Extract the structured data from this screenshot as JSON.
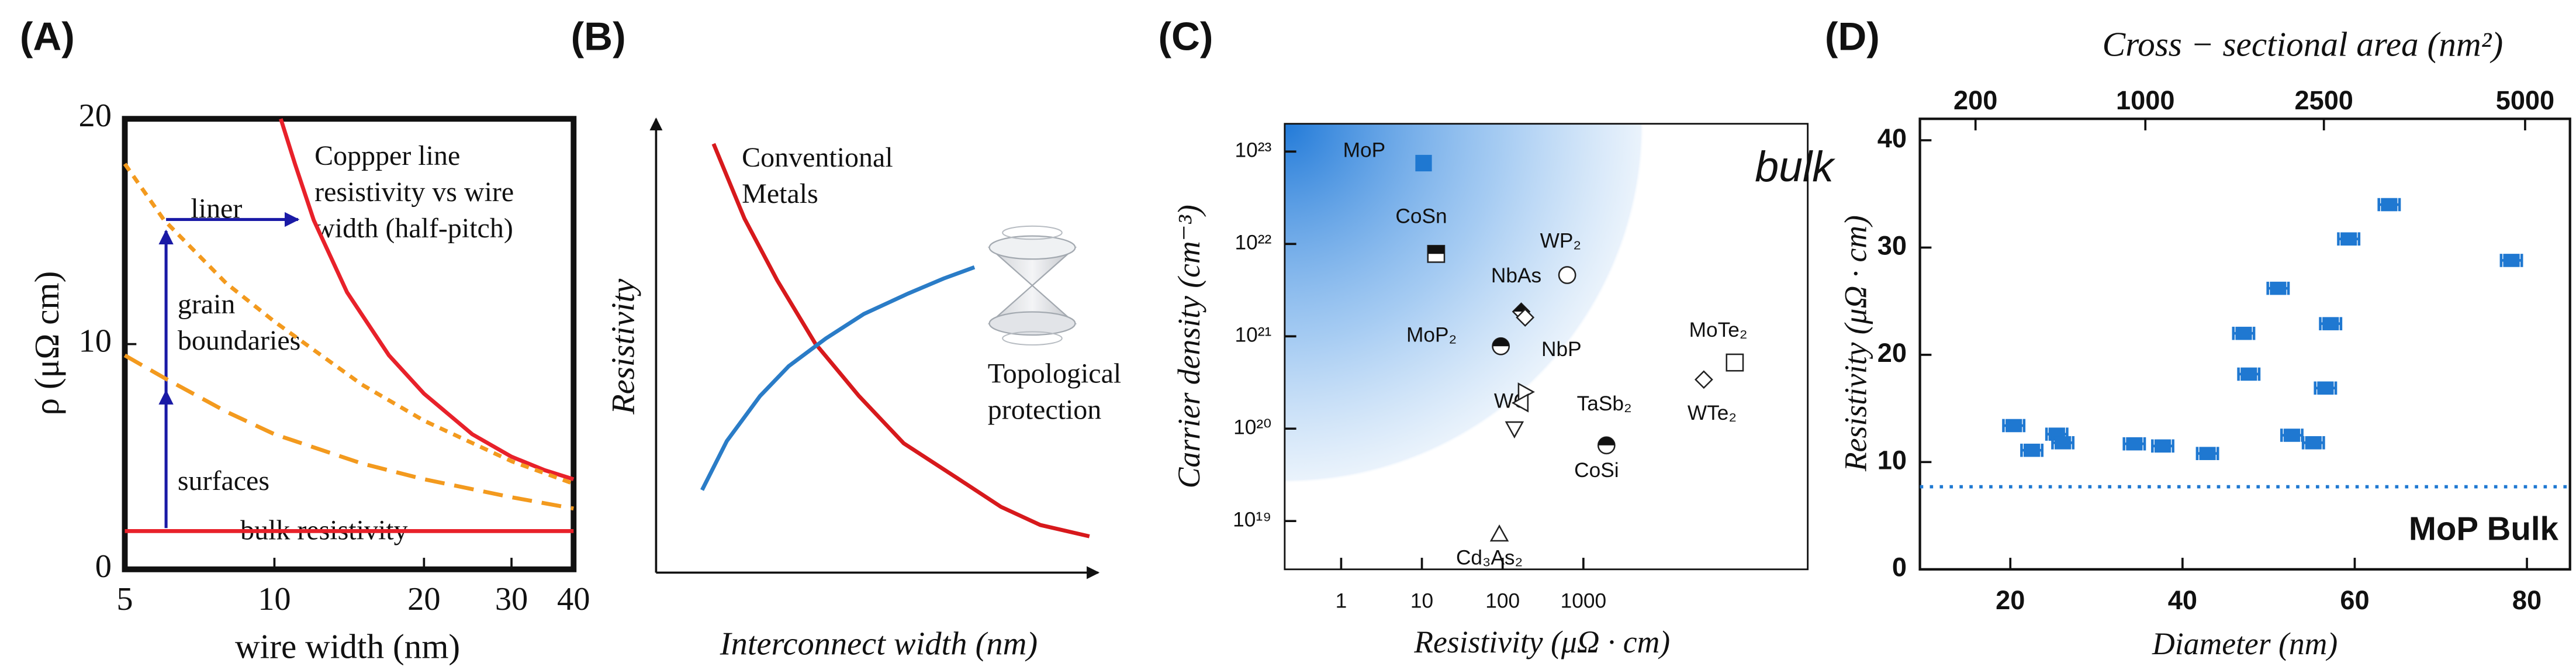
{
  "chart_data": [
    {
      "type": "line",
      "panel": "(A)",
      "xlabel": "wire width (nm)",
      "ylabel": "ρ (μΩ cm)",
      "xscale": "log",
      "xlim": [
        5,
        40
      ],
      "ylim": [
        0,
        20
      ],
      "xticks": [
        5,
        10,
        20,
        30,
        40
      ],
      "yticks": [
        0,
        10,
        20
      ],
      "series": [
        {
          "color": "#e8212a",
          "dash": "solid",
          "x": [
            10.3,
            11,
            12,
            14,
            17,
            20,
            25,
            30,
            35,
            40
          ],
          "values": [
            20,
            18,
            15.5,
            12.3,
            9.5,
            7.8,
            6,
            5,
            4.4,
            4
          ]
        },
        {
          "color": "#f39a1e",
          "dash": "dotted",
          "x": [
            5,
            6,
            8,
            10,
            15,
            20,
            30,
            40
          ],
          "values": [
            18,
            15.5,
            12.7,
            11,
            8.2,
            6.6,
            4.8,
            3.8
          ]
        },
        {
          "color": "#f39a1e",
          "dash": "dashed",
          "x": [
            5,
            6,
            8,
            10,
            15,
            20,
            30,
            40
          ],
          "values": [
            9.5,
            8.5,
            7,
            6,
            4.7,
            4,
            3.2,
            2.7
          ]
        },
        {
          "color": "#e8212a",
          "dash": "solid",
          "x": [
            5,
            40
          ],
          "values": [
            1.7,
            1.7
          ]
        }
      ],
      "annotations": [
        {
          "text": [
            "Coppper line",
            "resistivity vs wire",
            "width (half-pitch)"
          ],
          "color": "#e8212a"
        },
        {
          "text": [
            "liner"
          ],
          "color": "#1a1aa6"
        },
        {
          "text": [
            "grain",
            "boundaries"
          ],
          "color": "#1a1aa6"
        },
        {
          "text": [
            "surfaces"
          ],
          "color": "#1a1aa6"
        },
        {
          "text": [
            "bulk resistivity"
          ],
          "color": "#e8212a"
        }
      ]
    },
    {
      "type": "line",
      "panel": "(B)",
      "xlabel": "Interconnect width (nm)",
      "ylabel": "Resistivity",
      "xlim": [
        0,
        100
      ],
      "ylim": [
        0,
        100
      ],
      "series": [
        {
          "name": [
            "Conventional",
            "Metals"
          ],
          "color": "#d7191c",
          "dash": "solid",
          "x": [
            13,
            20,
            27.4,
            36,
            45.9,
            56,
            68.3,
            78,
            86.9,
            98
          ],
          "values": [
            94.5,
            78,
            64.4,
            50.5,
            38.9,
            28.5,
            20.7,
            14.5,
            10.5,
            8
          ]
        },
        {
          "name": [
            "Topological",
            "protection"
          ],
          "color": "#2a7cc7",
          "dash": "solid",
          "x": [
            10.4,
            16,
            23.5,
            30,
            38.4,
            47,
            57,
            65,
            72
          ],
          "values": [
            18.2,
            29,
            38.9,
            45.5,
            51.6,
            57,
            61.5,
            64.8,
            67.3
          ]
        }
      ]
    },
    {
      "type": "scatter",
      "panel": "(C)",
      "xlabel": "Resistivity (μΩ · cm)",
      "ylabel": "Carrier density (cm⁻³)",
      "xscale": "log",
      "yscale": "log",
      "xlim": [
        0.2,
        600000
      ],
      "ylim": [
        3e+18,
        2e+23
      ],
      "xticks": [
        1,
        10,
        100,
        1000
      ],
      "yticks": [
        {
          "value": 1e+19,
          "label": "10¹⁹"
        },
        {
          "value": 1e+20,
          "label": "10²⁰"
        },
        {
          "value": 1e+21,
          "label": "10²¹"
        },
        {
          "value": 1e+22,
          "label": "10²²"
        },
        {
          "value": 1e+23,
          "label": "10²³"
        }
      ],
      "color": "#1f78d1",
      "labels": [
        "MoP",
        "CoSn",
        "WP₂",
        "NbAs",
        "NbP",
        "MoP₂",
        "WC",
        "TaSb₂",
        null,
        "CoSi",
        "MoTe₂",
        "WTe₂",
        "Cd₃As₂"
      ],
      "x": [
        10.5,
        15,
        630,
        170,
        190,
        95,
        140,
        190,
        170,
        1930,
        75000,
        31000,
        91
      ],
      "values": [
        7.5e+22,
        7.8e+21,
        4.6e+21,
        1.85e+21,
        1.6e+21,
        7.8e+20,
        1e+20,
        2.5e+20,
        1.9e+20,
        6.6e+19,
        5.2e+20,
        3.4e+20,
        7.2e+18
      ],
      "markers": [
        "square-filled",
        "square-half",
        "circle-open",
        "diamond-half",
        "diamond-open",
        "circle-half",
        "triangle-down-open",
        "triangle-right-open",
        "triangle-left-open",
        "circle-half",
        "square-open",
        "diamond-open",
        "triangle-up-open"
      ],
      "annotations": [
        {
          "text": [
            "bulk"
          ]
        }
      ]
    },
    {
      "type": "scatter",
      "panel": "(D)",
      "xlabel": "Diameter (nm)",
      "ylabel": "Resistivity (μΩ · cm)",
      "x2label": "Cross − sectional area (nm²)",
      "x2ticks": [
        200,
        1000,
        2500,
        5000
      ],
      "xlim": [
        9.5,
        85
      ],
      "ylim": [
        0,
        42
      ],
      "xticks": [
        20,
        40,
        60,
        80
      ],
      "yticks": [
        0,
        10,
        20,
        30,
        40
      ],
      "color": "#1f78d1",
      "x": [
        20.4,
        22.5,
        25.4,
        26.1,
        34.4,
        37.7,
        42.9,
        47.1,
        47.7,
        51.1,
        52.7,
        55.2,
        56.6,
        57.2,
        59.3,
        64.0,
        78.2
      ],
      "xerr": [
        1.2,
        1.2,
        1.2,
        1.2,
        1.2,
        1.2,
        1.2,
        1.2,
        1.2,
        1.2,
        1.2,
        1.2,
        1.2,
        1.2,
        1.2,
        1.2,
        1.2
      ],
      "values": [
        13.4,
        11.1,
        12.6,
        11.8,
        11.7,
        11.5,
        10.8,
        22.0,
        18.2,
        26.2,
        12.5,
        11.8,
        16.9,
        22.9,
        30.8,
        34.0,
        28.8
      ],
      "reference": {
        "label": "MoP Bulk",
        "value": 7.7
      }
    }
  ]
}
